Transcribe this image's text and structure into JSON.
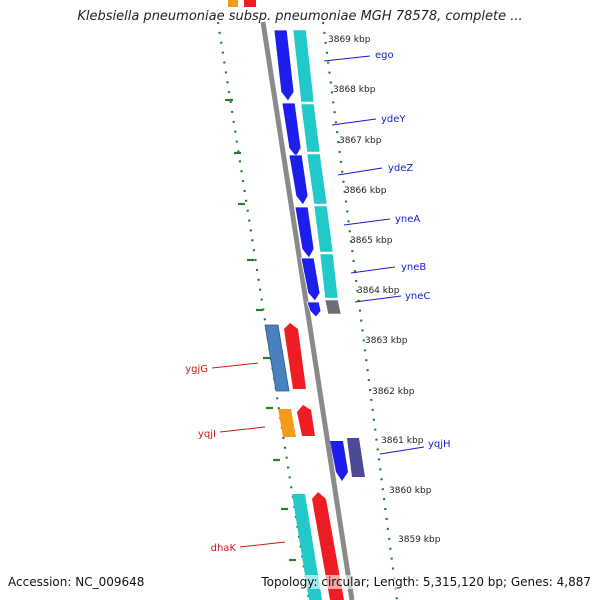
{
  "title": "Klebsiella pneumoniae subsp. pneumoniae MGH 78578, complete ...",
  "footer": {
    "accession": "Accession: NC_009648",
    "topology": "Topology: circular; Length: 5,315,120 bp; Genes: 4,887"
  },
  "colors": {
    "backbone": "#8a8a8a",
    "tick_marks": "#2a7d2a",
    "forward_label": "#1a1acc",
    "reverse_label": "#cc1a1a"
  },
  "scale_ticks": [
    {
      "label": "3869 kbp"
    },
    {
      "label": "3868 kbp"
    },
    {
      "label": "3867 kbp"
    },
    {
      "label": "3866 kbp"
    },
    {
      "label": "3865 kbp"
    },
    {
      "label": "3864 kbp"
    },
    {
      "label": "3863 kbp"
    },
    {
      "label": "3862 kbp"
    },
    {
      "label": "3861 kbp"
    },
    {
      "label": "3860 kbp"
    },
    {
      "label": "3859 kbp"
    }
  ],
  "gene_labels": [
    {
      "label": "ego",
      "strand": "forward"
    },
    {
      "label": "ydeY",
      "strand": "forward"
    },
    {
      "label": "ydeZ",
      "strand": "forward"
    },
    {
      "label": "yneA",
      "strand": "forward"
    },
    {
      "label": "yneB",
      "strand": "forward"
    },
    {
      "label": "yneC",
      "strand": "forward"
    },
    {
      "label": "ygjG",
      "strand": "reverse"
    },
    {
      "label": "yqjI",
      "strand": "reverse"
    },
    {
      "label": "yqjH",
      "strand": "forward"
    },
    {
      "label": "dhaK",
      "strand": "reverse"
    }
  ]
}
